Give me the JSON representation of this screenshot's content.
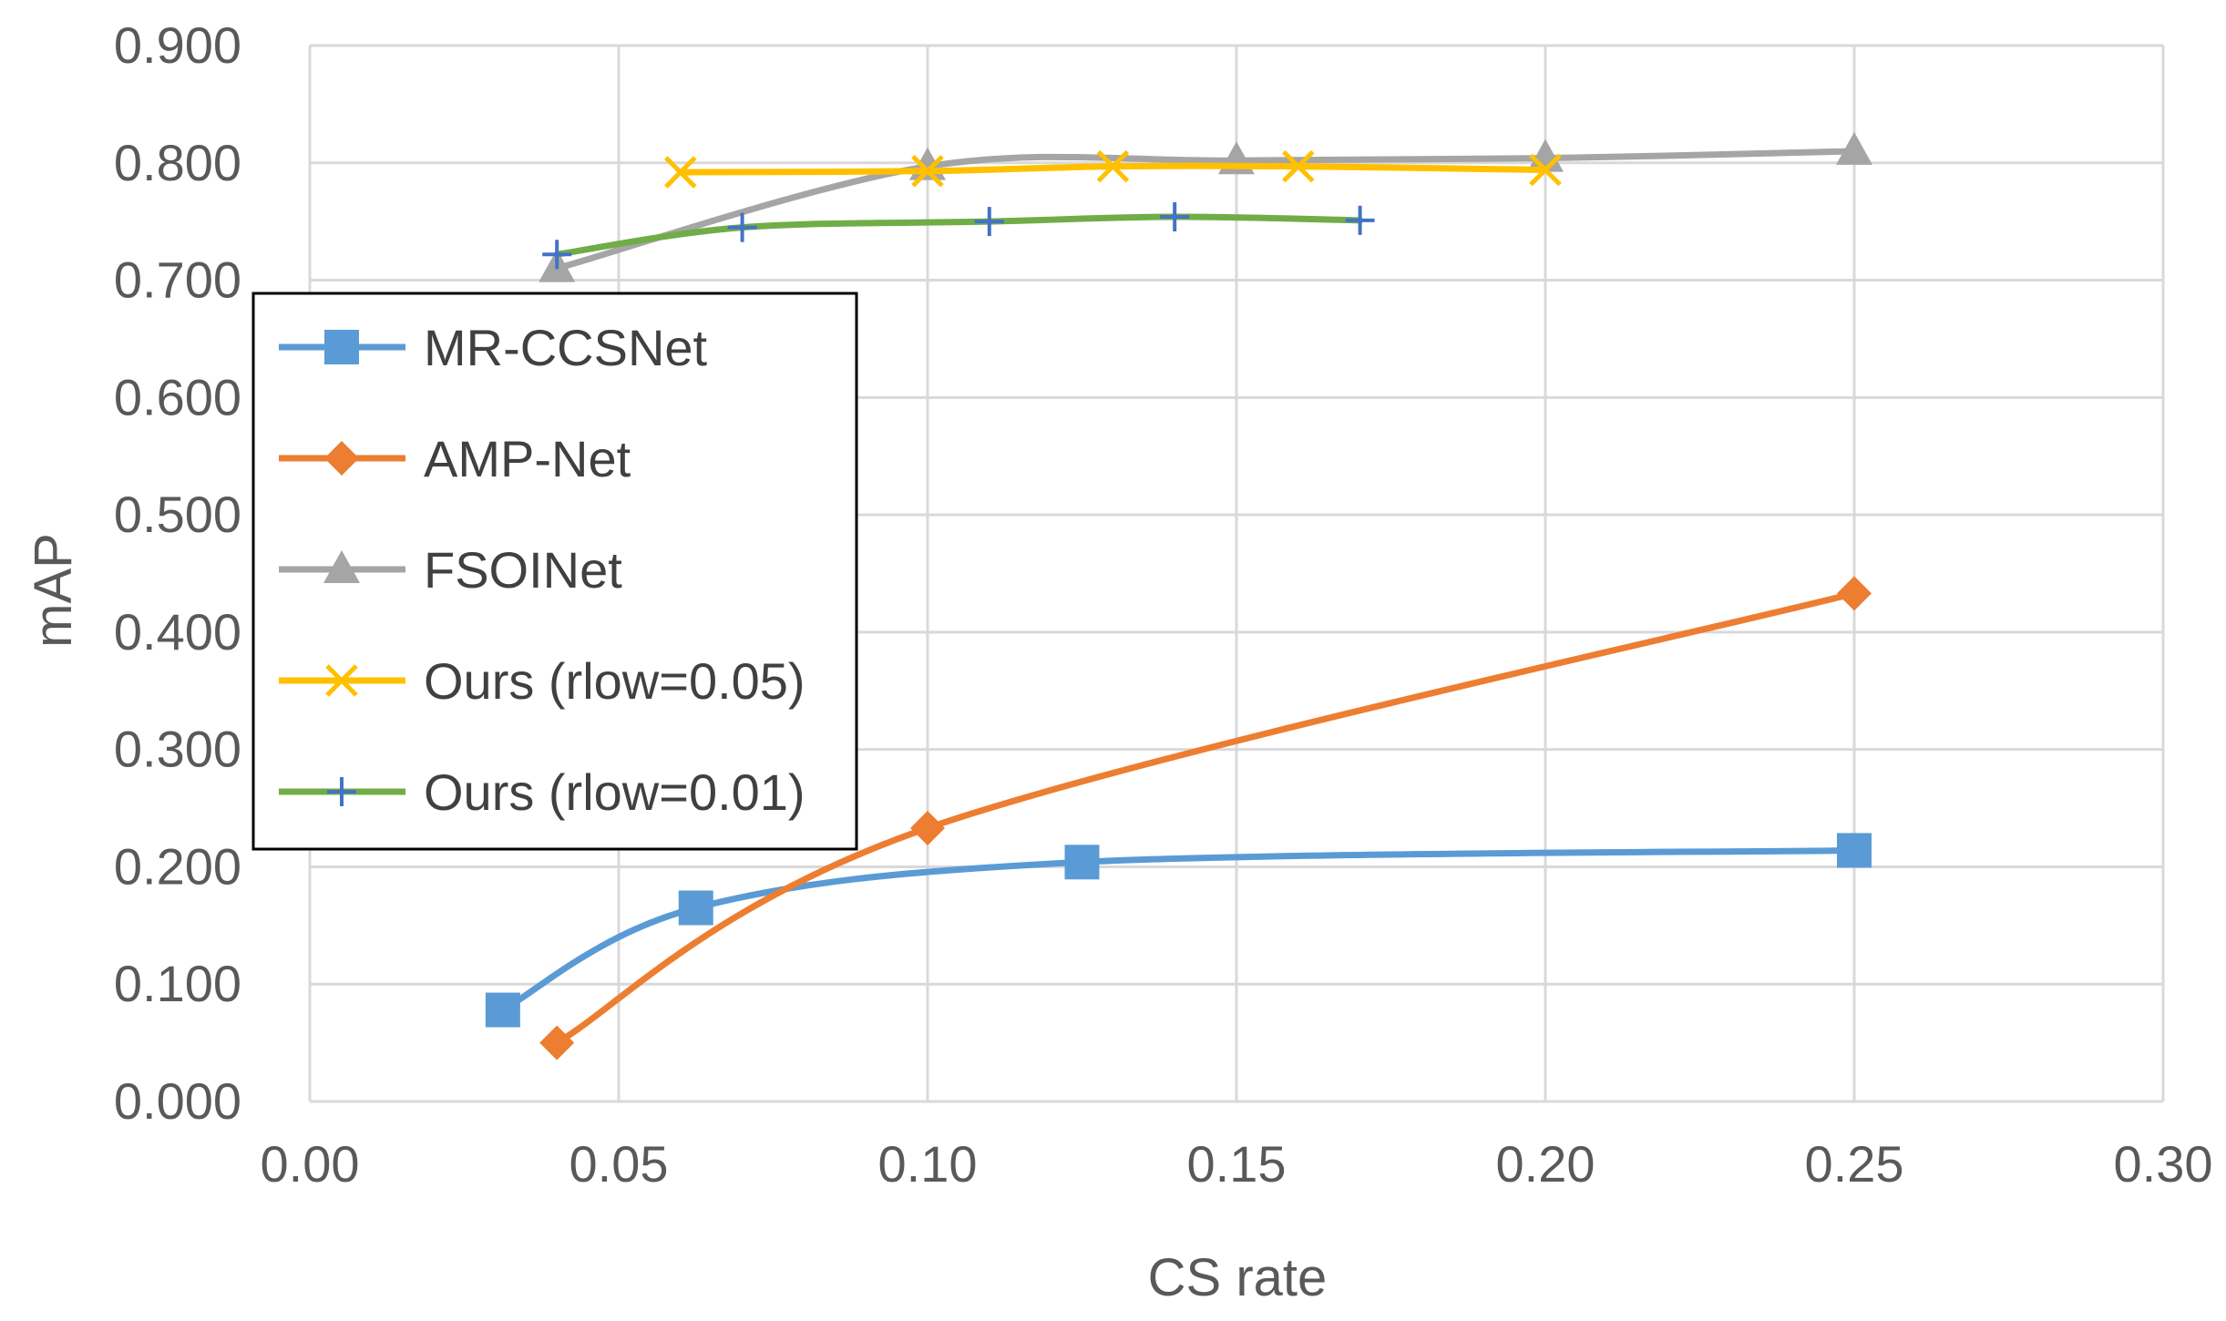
{
  "chart_data": {
    "type": "line",
    "title": "",
    "xlabel": "CS rate",
    "ylabel": "mAP",
    "xlim": [
      0,
      0.3
    ],
    "ylim": [
      0,
      0.9
    ],
    "xticks": [
      "0.00",
      "0.05",
      "0.10",
      "0.15",
      "0.20",
      "0.25",
      "0.30"
    ],
    "yticks": [
      "0.000",
      "0.100",
      "0.200",
      "0.300",
      "0.400",
      "0.500",
      "0.600",
      "0.700",
      "0.800",
      "0.900"
    ],
    "grid": true,
    "legend_position": "left-middle",
    "series": [
      {
        "name": "MR-CCSNet",
        "color": "#5B9BD5",
        "marker": "square",
        "x": [
          0.03125,
          0.0625,
          0.125,
          0.25
        ],
        "y": [
          0.078,
          0.165,
          0.204,
          0.214
        ]
      },
      {
        "name": "AMP-Net",
        "color": "#ED7D31",
        "marker": "diamond",
        "x": [
          0.04,
          0.1,
          0.25
        ],
        "y": [
          0.05,
          0.233,
          0.433
        ]
      },
      {
        "name": "FSOINet",
        "color": "#A5A5A5",
        "marker": "triangle",
        "x": [
          0.04,
          0.1,
          0.15,
          0.2,
          0.25
        ],
        "y": [
          0.71,
          0.797,
          0.802,
          0.804,
          0.81
        ]
      },
      {
        "name": "Ours (rlow=0.05)",
        "color": "#FFC000",
        "marker": "x",
        "x": [
          0.06,
          0.1,
          0.13,
          0.16,
          0.2
        ],
        "y": [
          0.792,
          0.793,
          0.797,
          0.797,
          0.794
        ]
      },
      {
        "name": "Ours (rlow=0.01)",
        "color": "#70AD47",
        "marker": "plus",
        "marker_color": "#4472C4",
        "x": [
          0.04,
          0.07,
          0.11,
          0.14,
          0.17
        ],
        "y": [
          0.722,
          0.745,
          0.75,
          0.754,
          0.751
        ]
      }
    ]
  }
}
